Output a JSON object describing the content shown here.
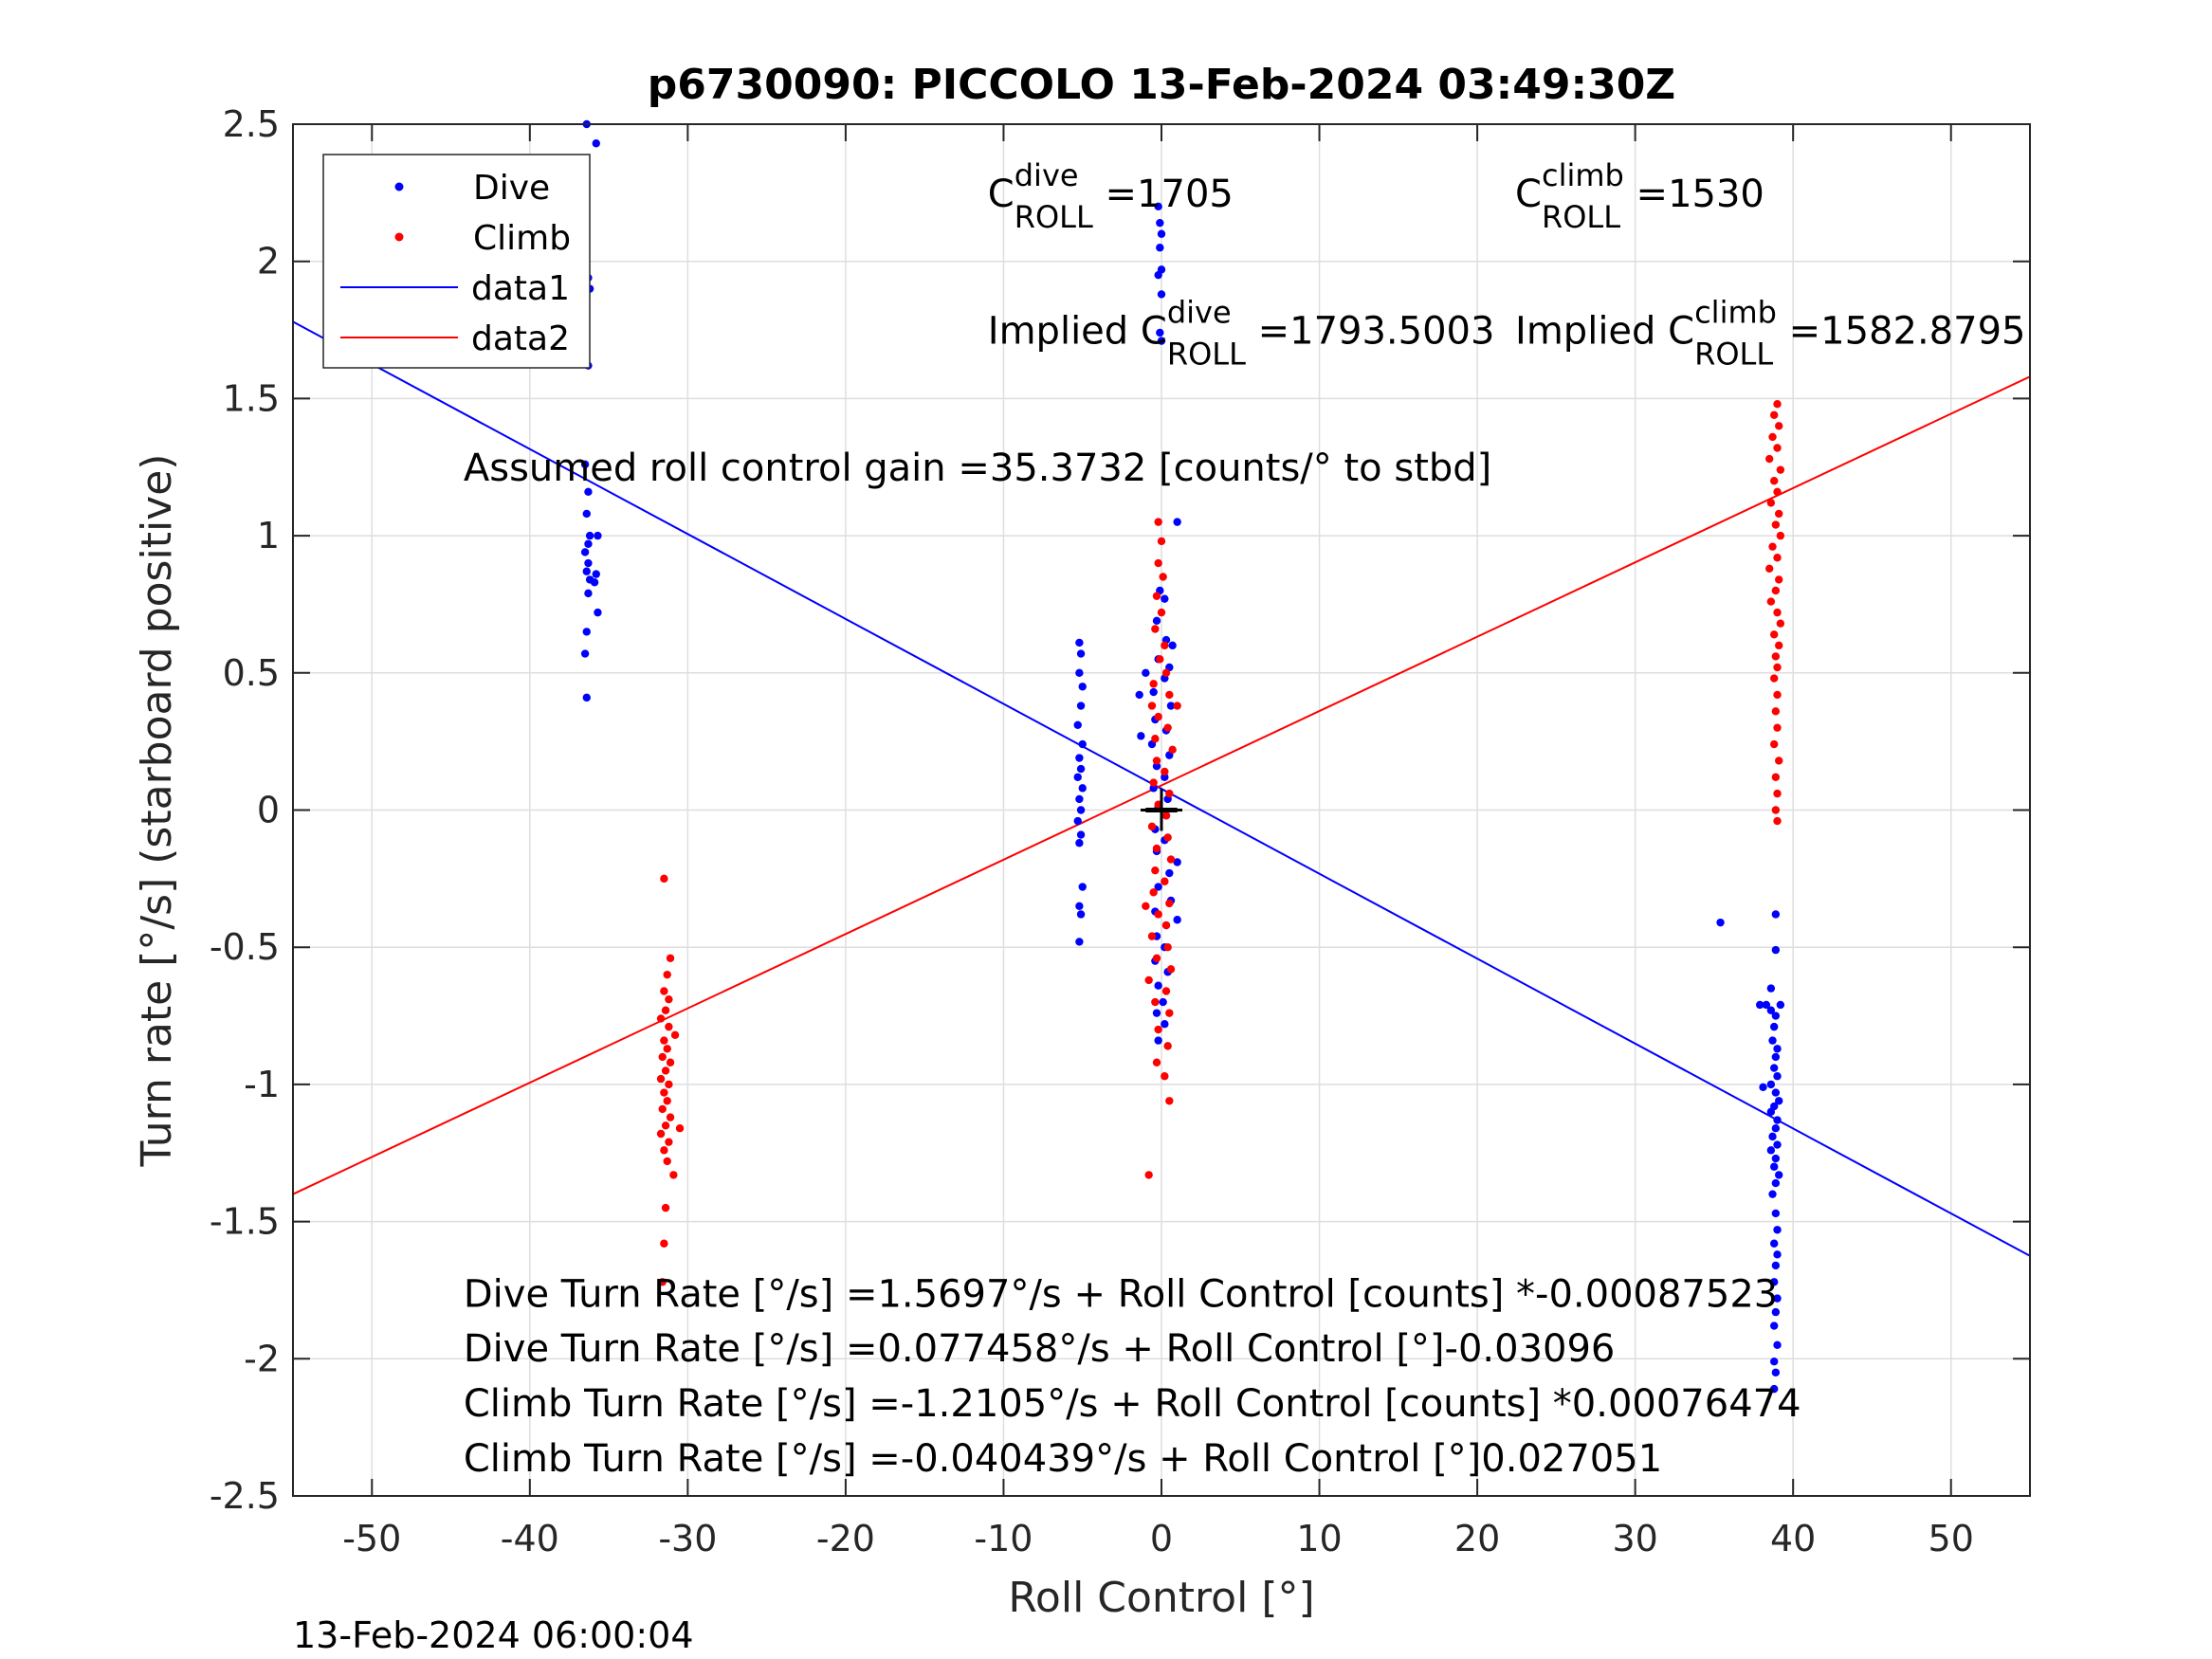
{
  "chart_data": {
    "type": "scatter",
    "title": "p6730090: PICCOLO 13-Feb-2024 03:49:30Z",
    "xlabel": "Roll Control [°]",
    "ylabel": "Turn rate [°/s] (starboard positive)",
    "xlim": [
      -55,
      55
    ],
    "ylim": [
      -2.5,
      2.5
    ],
    "xticks": [
      -50,
      -40,
      -30,
      -20,
      -10,
      0,
      10,
      20,
      30,
      40,
      50
    ],
    "yticks": [
      -2.5,
      -2,
      -1.5,
      -1,
      -0.5,
      0,
      0.5,
      1,
      1.5,
      2,
      2.5
    ],
    "xtick_labels": [
      "-50",
      "-40",
      "-30",
      "-20",
      "-10",
      "0",
      "10",
      "20",
      "30",
      "40",
      "50"
    ],
    "ytick_labels": [
      "-2.5",
      "-2",
      "-1.5",
      "-1",
      "-0.5",
      "0",
      "0.5",
      "1",
      "1.5",
      "2",
      "2.5"
    ],
    "grid": true,
    "legend_position": "top-left",
    "legend": [
      "Dive",
      "Climb",
      "data1",
      "data2"
    ],
    "colors": {
      "dive": "#0000ff",
      "climb": "#ff0000",
      "data1": "#0000ff",
      "data2": "#ff0000"
    },
    "series": [
      {
        "name": "Dive",
        "marker": "point",
        "points": [
          [
            -36.4,
            2.5
          ],
          [
            -35.8,
            2.43
          ],
          [
            -36.3,
            1.94
          ],
          [
            -36.2,
            1.9
          ],
          [
            -36.3,
            1.62
          ],
          [
            -36.5,
            1.26
          ],
          [
            -36.3,
            1.16
          ],
          [
            -36.4,
            1.08
          ],
          [
            -36.2,
            1.0
          ],
          [
            -35.7,
            1.0
          ],
          [
            -36.3,
            0.97
          ],
          [
            -36.5,
            0.94
          ],
          [
            -36.3,
            0.9
          ],
          [
            -36.4,
            0.87
          ],
          [
            -35.8,
            0.86
          ],
          [
            -36.2,
            0.84
          ],
          [
            -35.9,
            0.83
          ],
          [
            -36.3,
            0.79
          ],
          [
            -35.7,
            0.72
          ],
          [
            -36.4,
            0.65
          ],
          [
            -36.5,
            0.57
          ],
          [
            -36.4,
            0.41
          ],
          [
            -5.2,
            0.61
          ],
          [
            -5.1,
            0.57
          ],
          [
            -5.2,
            0.5
          ],
          [
            -5.0,
            0.45
          ],
          [
            -5.1,
            0.38
          ],
          [
            -5.3,
            0.31
          ],
          [
            -5.0,
            0.24
          ],
          [
            -5.2,
            0.19
          ],
          [
            -5.1,
            0.15
          ],
          [
            -5.3,
            0.12
          ],
          [
            -5.0,
            0.08
          ],
          [
            -5.2,
            0.04
          ],
          [
            -5.1,
            0.0
          ],
          [
            -5.3,
            -0.04
          ],
          [
            -5.1,
            -0.09
          ],
          [
            -5.2,
            -0.12
          ],
          [
            -5.0,
            -0.28
          ],
          [
            -5.2,
            -0.35
          ],
          [
            -5.1,
            -0.38
          ],
          [
            -5.2,
            -0.48
          ],
          [
            -0.2,
            2.2
          ],
          [
            -0.1,
            2.14
          ],
          [
            0.0,
            2.1
          ],
          [
            -0.1,
            2.05
          ],
          [
            0.0,
            1.97
          ],
          [
            -0.2,
            1.95
          ],
          [
            0.0,
            1.88
          ],
          [
            -0.1,
            1.74
          ],
          [
            0.0,
            1.71
          ],
          [
            1.0,
            1.05
          ],
          [
            -0.1,
            0.8
          ],
          [
            0.2,
            0.77
          ],
          [
            -0.3,
            0.69
          ],
          [
            0.3,
            0.62
          ],
          [
            0.7,
            0.6
          ],
          [
            -0.2,
            0.55
          ],
          [
            0.5,
            0.52
          ],
          [
            -1.0,
            0.5
          ],
          [
            0.2,
            0.48
          ],
          [
            -0.5,
            0.43
          ],
          [
            -1.4,
            0.42
          ],
          [
            0.6,
            0.38
          ],
          [
            -0.4,
            0.33
          ],
          [
            0.3,
            0.29
          ],
          [
            -1.3,
            0.27
          ],
          [
            -0.6,
            0.24
          ],
          [
            0.5,
            0.2
          ],
          [
            -0.3,
            0.16
          ],
          [
            0.2,
            0.12
          ],
          [
            -0.5,
            0.08
          ],
          [
            0.4,
            0.04
          ],
          [
            -0.2,
            0.01
          ],
          [
            0.3,
            -0.02
          ],
          [
            -0.4,
            -0.07
          ],
          [
            0.2,
            -0.11
          ],
          [
            -0.3,
            -0.15
          ],
          [
            1.0,
            -0.19
          ],
          [
            0.5,
            -0.23
          ],
          [
            -0.2,
            -0.28
          ],
          [
            0.6,
            -0.33
          ],
          [
            -0.4,
            -0.37
          ],
          [
            1.0,
            -0.4
          ],
          [
            0.3,
            -0.42
          ],
          [
            -0.3,
            -0.46
          ],
          [
            0.2,
            -0.5
          ],
          [
            -0.4,
            -0.55
          ],
          [
            0.4,
            -0.59
          ],
          [
            -0.2,
            -0.64
          ],
          [
            0.1,
            -0.7
          ],
          [
            -0.3,
            -0.74
          ],
          [
            0.2,
            -0.78
          ],
          [
            -0.2,
            -0.84
          ],
          [
            35.4,
            -0.41
          ],
          [
            38.9,
            -0.38
          ],
          [
            38.9,
            -0.51
          ],
          [
            38.6,
            -0.65
          ],
          [
            37.9,
            -0.71
          ],
          [
            38.3,
            -0.71
          ],
          [
            38.6,
            -0.73
          ],
          [
            39.2,
            -0.71
          ],
          [
            38.9,
            -0.75
          ],
          [
            38.8,
            -0.79
          ],
          [
            38.7,
            -0.84
          ],
          [
            39.0,
            -0.87
          ],
          [
            38.9,
            -0.9
          ],
          [
            38.8,
            -0.94
          ],
          [
            39.0,
            -0.97
          ],
          [
            38.6,
            -1.0
          ],
          [
            38.1,
            -1.01
          ],
          [
            38.9,
            -1.03
          ],
          [
            39.1,
            -1.06
          ],
          [
            38.8,
            -1.08
          ],
          [
            38.6,
            -1.1
          ],
          [
            39.0,
            -1.13
          ],
          [
            38.9,
            -1.16
          ],
          [
            38.7,
            -1.19
          ],
          [
            39.0,
            -1.22
          ],
          [
            38.6,
            -1.24
          ],
          [
            38.9,
            -1.27
          ],
          [
            38.8,
            -1.3
          ],
          [
            39.1,
            -1.33
          ],
          [
            38.9,
            -1.36
          ],
          [
            38.7,
            -1.4
          ],
          [
            38.9,
            -1.47
          ],
          [
            39.0,
            -1.53
          ],
          [
            38.8,
            -1.58
          ],
          [
            39.0,
            -1.62
          ],
          [
            38.9,
            -1.66
          ],
          [
            38.8,
            -1.72
          ],
          [
            39.0,
            -1.78
          ],
          [
            38.9,
            -1.83
          ],
          [
            38.8,
            -1.88
          ],
          [
            39.0,
            -1.95
          ],
          [
            38.8,
            -2.01
          ],
          [
            38.9,
            -2.05
          ],
          [
            38.8,
            -2.11
          ]
        ]
      },
      {
        "name": "Climb",
        "marker": "point",
        "points": [
          [
            -31.5,
            -0.25
          ],
          [
            -31.1,
            -0.54
          ],
          [
            -31.3,
            -0.6
          ],
          [
            -31.5,
            -0.66
          ],
          [
            -31.2,
            -0.69
          ],
          [
            -31.4,
            -0.73
          ],
          [
            -31.7,
            -0.76
          ],
          [
            -31.2,
            -0.79
          ],
          [
            -30.8,
            -0.82
          ],
          [
            -31.5,
            -0.84
          ],
          [
            -31.3,
            -0.87
          ],
          [
            -31.6,
            -0.9
          ],
          [
            -31.1,
            -0.92
          ],
          [
            -31.4,
            -0.95
          ],
          [
            -31.7,
            -0.98
          ],
          [
            -31.2,
            -1.0
          ],
          [
            -31.5,
            -1.03
          ],
          [
            -31.3,
            -1.06
          ],
          [
            -31.6,
            -1.09
          ],
          [
            -31.1,
            -1.12
          ],
          [
            -31.4,
            -1.15
          ],
          [
            -30.5,
            -1.16
          ],
          [
            -31.7,
            -1.18
          ],
          [
            -31.2,
            -1.21
          ],
          [
            -31.5,
            -1.24
          ],
          [
            -31.3,
            -1.28
          ],
          [
            -30.9,
            -1.33
          ],
          [
            -31.4,
            -1.45
          ],
          [
            -31.5,
            -1.58
          ],
          [
            -31.6,
            -1.72
          ],
          [
            -0.2,
            1.05
          ],
          [
            0.0,
            0.98
          ],
          [
            -0.2,
            0.9
          ],
          [
            0.1,
            0.85
          ],
          [
            -0.3,
            0.78
          ],
          [
            0.0,
            0.72
          ],
          [
            -0.4,
            0.66
          ],
          [
            0.2,
            0.6
          ],
          [
            -0.1,
            0.55
          ],
          [
            0.3,
            0.5
          ],
          [
            -0.5,
            0.46
          ],
          [
            0.5,
            0.42
          ],
          [
            -0.6,
            0.38
          ],
          [
            1.0,
            0.38
          ],
          [
            -0.2,
            0.34
          ],
          [
            0.4,
            0.3
          ],
          [
            -0.4,
            0.26
          ],
          [
            0.7,
            0.22
          ],
          [
            -0.3,
            0.18
          ],
          [
            0.2,
            0.14
          ],
          [
            -0.5,
            0.1
          ],
          [
            0.5,
            0.06
          ],
          [
            -0.2,
            0.02
          ],
          [
            0.3,
            -0.02
          ],
          [
            -0.6,
            -0.06
          ],
          [
            0.4,
            -0.1
          ],
          [
            -0.3,
            -0.14
          ],
          [
            0.6,
            -0.18
          ],
          [
            -0.4,
            -0.22
          ],
          [
            0.2,
            -0.26
          ],
          [
            -0.5,
            -0.3
          ],
          [
            0.5,
            -0.34
          ],
          [
            -1.0,
            -0.35
          ],
          [
            -0.2,
            -0.38
          ],
          [
            0.3,
            -0.42
          ],
          [
            -0.6,
            -0.46
          ],
          [
            0.4,
            -0.5
          ],
          [
            -0.3,
            -0.54
          ],
          [
            0.6,
            -0.58
          ],
          [
            -0.8,
            -0.62
          ],
          [
            0.3,
            -0.66
          ],
          [
            -0.4,
            -0.7
          ],
          [
            0.5,
            -0.74
          ],
          [
            -0.2,
            -0.8
          ],
          [
            0.4,
            -0.86
          ],
          [
            -0.3,
            -0.92
          ],
          [
            0.2,
            -0.97
          ],
          [
            0.5,
            -1.06
          ],
          [
            -0.8,
            -1.33
          ],
          [
            39.0,
            1.48
          ],
          [
            38.8,
            1.44
          ],
          [
            39.1,
            1.4
          ],
          [
            38.7,
            1.36
          ],
          [
            39.0,
            1.32
          ],
          [
            38.5,
            1.28
          ],
          [
            39.2,
            1.24
          ],
          [
            38.8,
            1.2
          ],
          [
            39.0,
            1.16
          ],
          [
            38.6,
            1.12
          ],
          [
            39.1,
            1.08
          ],
          [
            38.9,
            1.04
          ],
          [
            39.2,
            1.0
          ],
          [
            38.7,
            0.96
          ],
          [
            39.0,
            0.92
          ],
          [
            38.5,
            0.88
          ],
          [
            39.1,
            0.84
          ],
          [
            38.9,
            0.8
          ],
          [
            38.6,
            0.76
          ],
          [
            39.0,
            0.72
          ],
          [
            39.2,
            0.68
          ],
          [
            38.8,
            0.64
          ],
          [
            39.1,
            0.6
          ],
          [
            38.9,
            0.56
          ],
          [
            39.0,
            0.52
          ],
          [
            38.8,
            0.48
          ],
          [
            39.0,
            0.42
          ],
          [
            38.9,
            0.36
          ],
          [
            39.0,
            0.3
          ],
          [
            38.8,
            0.24
          ],
          [
            39.1,
            0.18
          ],
          [
            38.9,
            0.12
          ],
          [
            39.0,
            0.06
          ],
          [
            38.9,
            0.0
          ],
          [
            39.0,
            -0.04
          ]
        ]
      },
      {
        "name": "data1",
        "type": "line",
        "x": [
          -55,
          55
        ],
        "y": [
          1.78,
          -1.625
        ]
      },
      {
        "name": "data2",
        "type": "line",
        "x": [
          -55,
          55
        ],
        "y": [
          -1.4,
          1.58
        ]
      }
    ],
    "center_marker": {
      "x": 0,
      "y": 0
    },
    "center_segment": {
      "x": [
        -1.0,
        1.0
      ],
      "y": [
        0,
        0
      ]
    },
    "annotations": [
      {
        "kind": "sub",
        "x": -11,
        "y": 2.2,
        "base": "C",
        "sup": "dive",
        "sub": "ROLL",
        "value": "=1705"
      },
      {
        "kind": "sub",
        "x": 22.4,
        "y": 2.2,
        "base": "C",
        "sup": "climb",
        "sub": "ROLL",
        "value": "=1530"
      },
      {
        "kind": "sub",
        "x": -11,
        "y": 1.7,
        "prefix": "Implied ",
        "base": "C",
        "sup": "dive",
        "sub": "ROLL",
        "value": "=1793.5003"
      },
      {
        "kind": "sub",
        "x": 22.4,
        "y": 1.7,
        "prefix": "Implied ",
        "base": "C",
        "sup": "climb",
        "sub": "ROLL",
        "value": "=1582.8795"
      },
      {
        "kind": "text",
        "x": -44.2,
        "y": 1.2,
        "text": "Assumed roll control gain =35.3732 [counts/° to stbd]"
      },
      {
        "kind": "text",
        "x": -44.2,
        "y": -1.81,
        "text": "Dive Turn Rate [°/s] =1.5697°/s + Roll Control [counts] *-0.00087523"
      },
      {
        "kind": "text",
        "x": -44.2,
        "y": -2.01,
        "text": "Dive Turn Rate [°/s] =0.077458°/s + Roll Control [°]-0.03096"
      },
      {
        "kind": "text",
        "x": -44.2,
        "y": -2.21,
        "text": "Climb Turn Rate [°/s] =-1.2105°/s + Roll Control [counts] *0.00076474"
      },
      {
        "kind": "text",
        "x": -44.2,
        "y": -2.41,
        "text": "Climb Turn Rate [°/s] =-0.040439°/s + Roll Control [°]0.027051"
      }
    ],
    "footer": "13-Feb-2024 06:00:04"
  }
}
